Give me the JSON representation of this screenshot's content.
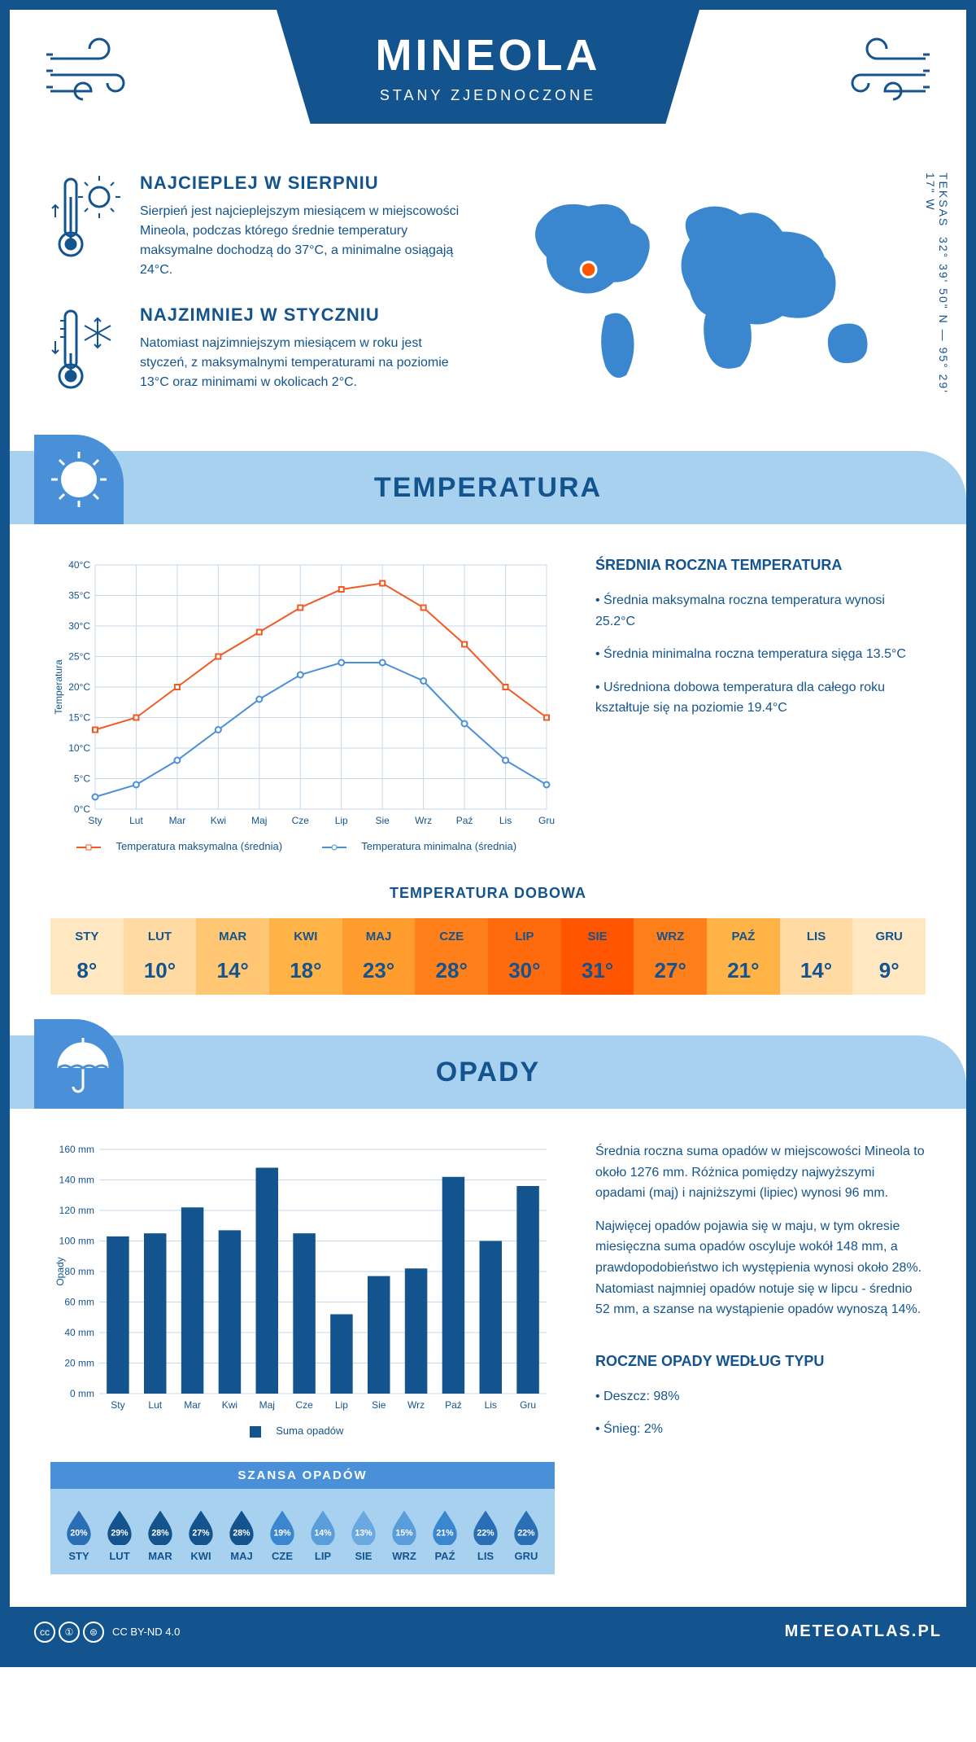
{
  "header": {
    "city": "MINEOLA",
    "country": "STANY ZJEDNOCZONE"
  },
  "coords": {
    "state": "TEKSAS",
    "lat": "32° 39' 50\" N",
    "lon": "95° 29' 17\" W"
  },
  "fact_hot": {
    "title": "NAJCIEPLEJ W SIERPNIU",
    "text": "Sierpień jest najcieplejszym miesiącem w miejscowości Mineola, podczas którego średnie temperatury maksymalne dochodzą do 37°C, a minimalne osiągają 24°C."
  },
  "fact_cold": {
    "title": "NAJZIMNIEJ W STYCZNIU",
    "text": "Natomiast najzimniejszym miesiącem w roku jest styczeń, z maksymalnymi temperaturami na poziomie 13°C oraz minimami w okolicach 2°C."
  },
  "sec_temp": "TEMPERATURA",
  "sec_rain": "OPADY",
  "temp_side": {
    "title": "ŚREDNIA ROCZNA TEMPERATURA",
    "p1": "• Średnia maksymalna roczna temperatura wynosi 25.2°C",
    "p2": "• Średnia minimalna roczna temperatura sięga 13.5°C",
    "p3": "• Uśredniona dobowa temperatura dla całego roku kształtuje się na poziomie 19.4°C"
  },
  "temp_chart": {
    "months": [
      "Sty",
      "Lut",
      "Mar",
      "Kwi",
      "Maj",
      "Cze",
      "Lip",
      "Sie",
      "Wrz",
      "Paź",
      "Lis",
      "Gru"
    ],
    "max": [
      13,
      15,
      20,
      25,
      29,
      33,
      36,
      37,
      33,
      27,
      20,
      15
    ],
    "min": [
      2,
      4,
      8,
      13,
      18,
      22,
      24,
      24,
      21,
      14,
      8,
      4
    ],
    "ylim": [
      0,
      40
    ],
    "ystep": 5,
    "c_max": "#f15a24",
    "c_min": "#4a90d9",
    "grid": "#c7d8e8",
    "axis_lbl": "Temperatura",
    "leg_max": "Temperatura maksymalna (średnia)",
    "leg_min": "Temperatura minimalna (średnia)"
  },
  "temp_daily": {
    "title": "TEMPERATURA DOBOWA",
    "months": [
      "STY",
      "LUT",
      "MAR",
      "KWI",
      "MAJ",
      "CZE",
      "LIP",
      "SIE",
      "WRZ",
      "PAŹ",
      "LIS",
      "GRU"
    ],
    "vals": [
      "8°",
      "10°",
      "14°",
      "18°",
      "23°",
      "28°",
      "30°",
      "31°",
      "27°",
      "21°",
      "14°",
      "9°"
    ],
    "colors": [
      "#ffe7c2",
      "#ffdba3",
      "#ffc773",
      "#ffb347",
      "#ff9c2e",
      "#ff7f1a",
      "#ff6a0d",
      "#ff5400",
      "#ff7f1a",
      "#ffb347",
      "#ffdba3",
      "#ffe7c2"
    ]
  },
  "rain_side": {
    "p1": "Średnia roczna suma opadów w miejscowości Mineola to około 1276 mm. Różnica pomiędzy najwyższymi opadami (maj) i najniższymi (lipiec) wynosi 96 mm.",
    "p2": "Najwięcej opadów pojawia się w maju, w tym okresie miesięczna suma opadów oscyluje wokół 148 mm, a prawdopodobieństwo ich występienia wynosi około 28%. Natomiast najmniej opadów notuje się w lipcu - średnio 52 mm, a szanse na wystąpienie opadów wynoszą 14%.",
    "tytitle": "ROCZNE OPADY WEDŁUG TYPU",
    "ty1": "• Deszcz: 98%",
    "ty2": "• Śnieg: 2%"
  },
  "rain_chart": {
    "months": [
      "Sty",
      "Lut",
      "Mar",
      "Kwi",
      "Maj",
      "Cze",
      "Lip",
      "Sie",
      "Wrz",
      "Paź",
      "Lis",
      "Gru"
    ],
    "vals": [
      103,
      105,
      122,
      107,
      148,
      105,
      52,
      77,
      82,
      142,
      100,
      136
    ],
    "ylim": [
      0,
      160
    ],
    "ystep": 20,
    "bar_color": "#14548e",
    "grid": "#c7d8e8",
    "axis_lbl": "Opady",
    "leg": "Suma opadów"
  },
  "chance": {
    "title": "SZANSA OPADÓW",
    "months": [
      "STY",
      "LUT",
      "MAR",
      "KWI",
      "MAJ",
      "CZE",
      "LIP",
      "SIE",
      "WRZ",
      "PAŹ",
      "LIS",
      "GRU"
    ],
    "pct": [
      "20%",
      "29%",
      "28%",
      "27%",
      "28%",
      "19%",
      "14%",
      "13%",
      "15%",
      "21%",
      "22%",
      "22%"
    ],
    "colors": [
      "#2a6fb5",
      "#14548e",
      "#14548e",
      "#14548e",
      "#14548e",
      "#3a87d0",
      "#5a9ddb",
      "#6aa8e0",
      "#5a9ddb",
      "#3a87d0",
      "#2a6fb5",
      "#2a6fb5"
    ]
  },
  "footer": {
    "cc": "CC BY-ND 4.0",
    "site": "METEOATLAS.PL"
  }
}
